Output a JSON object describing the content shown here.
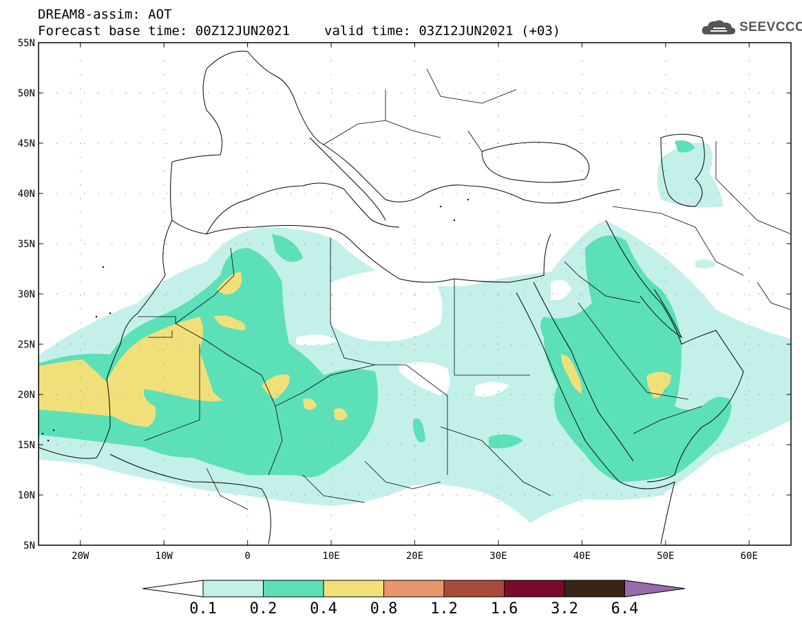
{
  "header": {
    "model_line": "DREAM8-assim: AOT",
    "base_time": "Forecast base time: 00Z12JUN2021",
    "valid_time": "valid time: 03Z12JUN2021 (+03)"
  },
  "logo": {
    "text": "SEEVCCC",
    "icon": "cloud-icon"
  },
  "map": {
    "lat_labels": [
      "55N",
      "50N",
      "45N",
      "40N",
      "35N",
      "30N",
      "25N",
      "20N",
      "15N",
      "10N",
      "5N"
    ],
    "lon_labels": [
      "20W",
      "10W",
      "0",
      "10E",
      "20E",
      "30E",
      "40E",
      "50E",
      "60E"
    ],
    "lat_range": [
      5,
      55
    ],
    "lon_range": [
      -25,
      65
    ],
    "field": "Aerosol optical thickness"
  },
  "colorbar": {
    "labels": [
      "0.1",
      "0.2",
      "0.4",
      "0.8",
      "1.2",
      "1.6",
      "3.2",
      "6.4"
    ],
    "colors": [
      "#ffffff",
      "#c4f0ea",
      "#5ce0b8",
      "#f1e07a",
      "#e8956b",
      "#a84a3a",
      "#7a0b2b",
      "#3a2514",
      "#9a6aac"
    ]
  },
  "colors": {
    "aot_0_1_0_2": "#c4f0ea",
    "aot_0_2_0_4": "#5ce0b8",
    "aot_0_4_0_8": "#f1e07a",
    "coast": "#000000"
  }
}
